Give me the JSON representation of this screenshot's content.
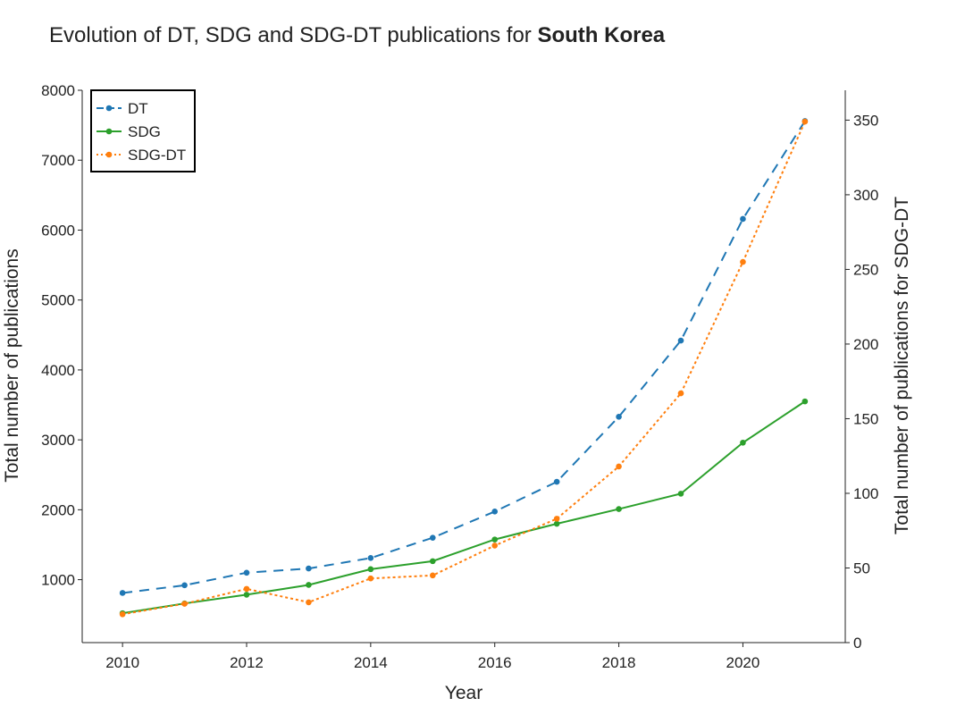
{
  "title": {
    "prefix": "Evolution of DT, SDG and SDG-DT publications for ",
    "country": "South Korea"
  },
  "colors": {
    "dt": "#1f77b4",
    "sdg": "#2ca02c",
    "sdgdt": "#ff7f0e"
  },
  "chart_data": {
    "type": "line",
    "xlabel": "Year",
    "ylabel_left": "Total number of publications",
    "ylabel_right": "Total number of publications for SDG-DT",
    "x": [
      2010,
      2011,
      2012,
      2013,
      2014,
      2015,
      2016,
      2017,
      2018,
      2019,
      2020,
      2021
    ],
    "xlim": [
      2009.35,
      2021.65
    ],
    "xticks": [
      2010,
      2012,
      2014,
      2016,
      2018,
      2020
    ],
    "ylim_left": [
      100,
      8000
    ],
    "yticks_left": [
      1000,
      2000,
      3000,
      4000,
      5000,
      6000,
      7000,
      8000
    ],
    "ylim_right": [
      0,
      370
    ],
    "yticks_right": [
      0,
      50,
      100,
      150,
      200,
      250,
      300,
      350
    ],
    "legend_position": "top-left",
    "series": [
      {
        "name": "DT",
        "axis": "left",
        "style": "dashed",
        "values": [
          810,
          920,
          1100,
          1160,
          1310,
          1600,
          1975,
          2400,
          3330,
          4420,
          6160,
          7560
        ]
      },
      {
        "name": "SDG",
        "axis": "left",
        "style": "solid",
        "values": [
          520,
          660,
          785,
          925,
          1150,
          1265,
          1575,
          1800,
          2010,
          2230,
          2960,
          3550
        ]
      },
      {
        "name": "SDG-DT",
        "axis": "right",
        "style": "dotted",
        "values": [
          19,
          26,
          36,
          27,
          43,
          45,
          65,
          83,
          118,
          167,
          255,
          349
        ]
      }
    ]
  }
}
